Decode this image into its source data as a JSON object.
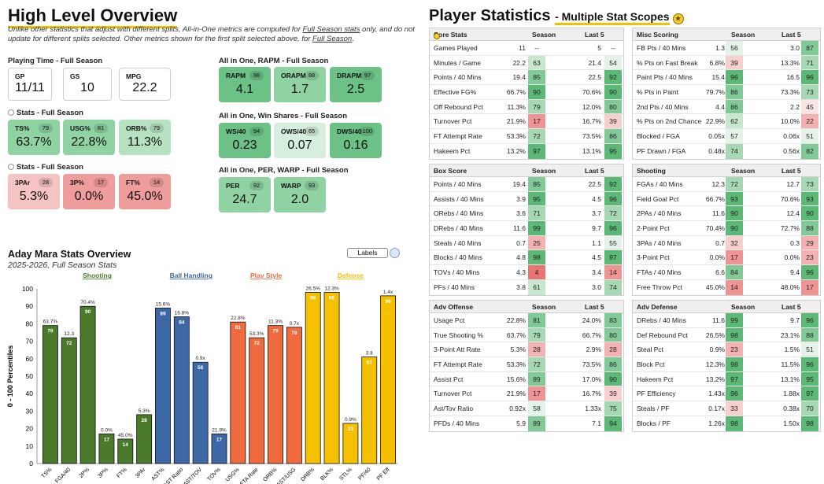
{
  "left_title": "High Level Overview",
  "disclaimer": {
    "p1": "Unlike other statistics that adjust with different splits, All-in-One metrics are computed for ",
    "u1": "Full Season stats",
    "p2": " only, and do not update for different splits selected. Other metrics shown for the first split selected above, for ",
    "u2": "Full Season",
    "p3": "."
  },
  "sections": {
    "playing_time": "Playing Time - Full Season",
    "stats1": "Stats - Full Season",
    "stats2": "Stats - Full Season",
    "rapm": "All in One, RAPM - Full Season",
    "win_shares": "All in One, Win Shares - Full Season",
    "per_warp": "All in One, PER, WARP - Full Season"
  },
  "cards": {
    "gp": {
      "label": "GP",
      "value": "11/11"
    },
    "gs": {
      "label": "GS",
      "value": "10"
    },
    "mpg": {
      "label": "MPG",
      "value": "22.2"
    },
    "ts": {
      "label": "TS%",
      "pct": "79",
      "value": "63.7%"
    },
    "usg": {
      "label": "USG%",
      "pct": "81",
      "value": "22.8%"
    },
    "orb": {
      "label": "ORB%",
      "pct": "79",
      "value": "11.3%"
    },
    "par3": {
      "label": "3PAr",
      "pct": "28",
      "value": "5.3%"
    },
    "p3": {
      "label": "3P%",
      "pct": "17",
      "value": "0.0%"
    },
    "ft": {
      "label": "FT%",
      "pct": "14",
      "value": "45.0%"
    },
    "rapm": {
      "label": "RAPM",
      "pct": "96",
      "value": "4.1"
    },
    "orapm": {
      "label": "ORAPM",
      "pct": "88",
      "value": "1.7"
    },
    "drapm": {
      "label": "DRAPM",
      "pct": "97",
      "value": "2.5"
    },
    "ws40": {
      "label": "WS/40",
      "pct": "94",
      "value": "0.23"
    },
    "ows40": {
      "label": "OWS/40",
      "pct": "65",
      "value": "0.07"
    },
    "dws40": {
      "label": "DWS/40",
      "pct": "100",
      "value": "0.16"
    },
    "per": {
      "label": "PER",
      "pct": "92",
      "value": "24.7"
    },
    "warp": {
      "label": "WARP",
      "pct": "93",
      "value": "2.0"
    }
  },
  "chart_header": {
    "title": "Aday Mara Stats Overview",
    "subtitle": "2025-2026, Full Season Stats",
    "labels_button": "Labels"
  },
  "chart_data": {
    "type": "bar",
    "title": "Aday Mara Stats Overview",
    "ylabel": "0 - 100 Percentiles",
    "ylim": [
      0,
      100
    ],
    "yticks": [
      "0",
      "10",
      "20",
      "30",
      "40",
      "50",
      "60",
      "70",
      "80",
      "90",
      "100"
    ],
    "groups": [
      {
        "name": "Shooting",
        "color": "#4a7a2a"
      },
      {
        "name": "Ball Handling",
        "color": "#3e67a6"
      },
      {
        "name": "Play Style",
        "color": "#ef6a3c"
      },
      {
        "name": "Defense",
        "color": "#f5c000"
      }
    ],
    "bars": [
      {
        "category": "TS%",
        "group": 0,
        "value": 79,
        "stat": "63.7%"
      },
      {
        "category": "FGA/40",
        "group": 0,
        "value": 72,
        "stat": "12.3"
      },
      {
        "category": "2P%",
        "group": 0,
        "value": 90,
        "stat": "70.4%"
      },
      {
        "category": "3P%",
        "group": 0,
        "value": 17,
        "stat": "0.0%"
      },
      {
        "category": "FT%",
        "group": 0,
        "value": 14,
        "stat": "45.0%"
      },
      {
        "category": "3PAr",
        "group": 0,
        "value": 28,
        "stat": "5.3%"
      },
      {
        "category": "AST%",
        "group": 1,
        "value": 89,
        "stat": "15.6%"
      },
      {
        "category": "AST Ratio",
        "group": 1,
        "value": 84,
        "stat": "16.8%"
      },
      {
        "category": "AST/TOV",
        "group": 1,
        "value": 58,
        "stat": "0.9x"
      },
      {
        "category": "TOV%",
        "group": 1,
        "value": 17,
        "stat": "21.9%"
      },
      {
        "category": "USG%",
        "group": 2,
        "value": 81,
        "stat": "22.8%"
      },
      {
        "category": "FTA Rate",
        "group": 2,
        "value": 72,
        "stat": "53.3%"
      },
      {
        "category": "ORB%",
        "group": 2,
        "value": 79,
        "stat": "11.3%"
      },
      {
        "category": "AST/USG",
        "group": 2,
        "value": 78,
        "stat": "0.7x"
      },
      {
        "category": "DRB%",
        "group": 3,
        "value": 98,
        "stat": "26.5%"
      },
      {
        "category": "BLK%",
        "group": 3,
        "value": 98,
        "stat": "12.3%"
      },
      {
        "category": "STL%",
        "group": 3,
        "value": 23,
        "stat": "0.9%"
      },
      {
        "category": "PF/40",
        "group": 3,
        "value": 61,
        "stat": "3.8"
      },
      {
        "category": "PF Eff",
        "group": 3,
        "value": 96,
        "stat": "1.4x"
      }
    ]
  },
  "right_title": {
    "main": "Player Statistics",
    "sub": "- Multiple Stat Scopes"
  },
  "tables": [
    {
      "id": "core",
      "title": "Core Stats",
      "season": "Season",
      "last5": "Last 5",
      "rows": [
        [
          "Games Played",
          "11",
          "--",
          "5",
          "--"
        ],
        [
          "Minutes / Game",
          "22.2",
          "63",
          "21.4",
          "54"
        ],
        [
          "Points / 40 Mins",
          "19.4",
          "85",
          "22.5",
          "92"
        ],
        [
          "Effective FG%",
          "66.7%",
          "90",
          "70.6%",
          "90"
        ],
        [
          "Off Rebound Pct",
          "11.3%",
          "79",
          "12.0%",
          "80"
        ],
        [
          "Turnover Pct",
          "21.9%",
          "17",
          "16.7%",
          "39"
        ],
        [
          "FT Attempt Rate",
          "53.3%",
          "72",
          "73.5%",
          "86"
        ],
        [
          "Hakeem Pct",
          "13.2%",
          "97",
          "13.1%",
          "95"
        ]
      ]
    },
    {
      "id": "misc",
      "title": "Misc Scoring",
      "season": "Season",
      "last5": "Last 5",
      "rows": [
        [
          "FB Pts / 40 Mins",
          "1.3",
          "56",
          "3.0",
          "87"
        ],
        [
          "% Pts on Fast Break",
          "6.8%",
          "39",
          "13.3%",
          "71"
        ],
        [
          "Paint Pts / 40 Mins",
          "15.4",
          "96",
          "16.5",
          "96"
        ],
        [
          "% Pts in Paint",
          "79.7%",
          "86",
          "73.3%",
          "73"
        ],
        [
          "2nd Pts / 40 Mins",
          "4.4",
          "86",
          "2.2",
          "45"
        ],
        [
          "% Pts on 2nd Chance",
          "22.9%",
          "62",
          "10.0%",
          "22"
        ],
        [
          "Blocked / FGA",
          "0.05x",
          "57",
          "0.06x",
          "51"
        ],
        [
          "PF Drawn / FGA",
          "0.48x",
          "74",
          "0.56x",
          "82"
        ]
      ]
    },
    {
      "id": "box",
      "title": "Box Score",
      "season": "Season",
      "last5": "Last 5",
      "rows": [
        [
          "Points / 40 Mins",
          "19.4",
          "85",
          "22.5",
          "92"
        ],
        [
          "Assists / 40 Mins",
          "3.9",
          "95",
          "4.5",
          "96"
        ],
        [
          "ORebs / 40 Mins",
          "3.6",
          "71",
          "3.7",
          "72"
        ],
        [
          "DRebs / 40 Mins",
          "11.6",
          "99",
          "9.7",
          "96"
        ],
        [
          "Steals / 40 Mins",
          "0.7",
          "25",
          "1.1",
          "55"
        ],
        [
          "Blocks / 40 Mins",
          "4.8",
          "98",
          "4.5",
          "97"
        ],
        [
          "TOVs / 40 Mins",
          "4.3",
          "4",
          "3.4",
          "14"
        ],
        [
          "PFs / 40 Mins",
          "3.8",
          "61",
          "3.0",
          "74"
        ]
      ]
    },
    {
      "id": "shoot",
      "title": "Shooting",
      "season": "Season",
      "last5": "Last 5",
      "rows": [
        [
          "FGAs / 40 Mins",
          "12.3",
          "72",
          "12.7",
          "73"
        ],
        [
          "Field Goal Pct",
          "66.7%",
          "93",
          "70.6%",
          "93"
        ],
        [
          "2PAs / 40 Mins",
          "11.6",
          "90",
          "12.4",
          "90"
        ],
        [
          "2-Point Pct",
          "70.4%",
          "90",
          "72.7%",
          "88"
        ],
        [
          "3PAs / 40 Mins",
          "0.7",
          "32",
          "0.3",
          "29"
        ],
        [
          "3-Point Pct",
          "0.0%",
          "17",
          "0.0%",
          "23"
        ],
        [
          "FTAs / 40 Mins",
          "6.6",
          "84",
          "9.4",
          "96"
        ],
        [
          "Free Throw Pct",
          "45.0%",
          "14",
          "48.0%",
          "17"
        ]
      ]
    },
    {
      "id": "advoff",
      "title": "Adv Offense",
      "season": "Season",
      "last5": "Last 5",
      "rows": [
        [
          "Usage Pct",
          "22.8%",
          "81",
          "24.0%",
          "83"
        ],
        [
          "True Shooting %",
          "63.7%",
          "79",
          "66.7%",
          "80"
        ],
        [
          "3-Point Att Rate",
          "5.3%",
          "28",
          "2.9%",
          "28"
        ],
        [
          "FT Attempt Rate",
          "53.3%",
          "72",
          "73.5%",
          "86"
        ],
        [
          "Assist Pct",
          "15.6%",
          "89",
          "17.0%",
          "90"
        ],
        [
          "Turnover Pct",
          "21.9%",
          "17",
          "16.7%",
          "39"
        ],
        [
          "Ast/Tov Ratio",
          "0.92x",
          "58",
          "1.33x",
          "75"
        ],
        [
          "PFDs / 40 Mins",
          "5.9",
          "89",
          "7.1",
          "94"
        ]
      ]
    },
    {
      "id": "advdef",
      "title": "Adv Defense",
      "season": "Season",
      "last5": "Last 5",
      "rows": [
        [
          "DRebs / 40 Mins",
          "11.6",
          "99",
          "9.7",
          "96"
        ],
        [
          "Def Rebound Pct",
          "26.5%",
          "98",
          "23.1%",
          "88"
        ],
        [
          "Steal Pct",
          "0.9%",
          "23",
          "1.5%",
          "51"
        ],
        [
          "Block Pct",
          "12.3%",
          "98",
          "11.5%",
          "96"
        ],
        [
          "Hakeem Pct",
          "13.2%",
          "97",
          "13.1%",
          "95"
        ],
        [
          "PF Efficiency",
          "1.43x",
          "96",
          "1.88x",
          "97"
        ],
        [
          "Steals / PF",
          "0.17x",
          "33",
          "0.38x",
          "70"
        ],
        [
          "Blocks / PF",
          "1.26x",
          "98",
          "1.50x",
          "98"
        ]
      ]
    }
  ]
}
